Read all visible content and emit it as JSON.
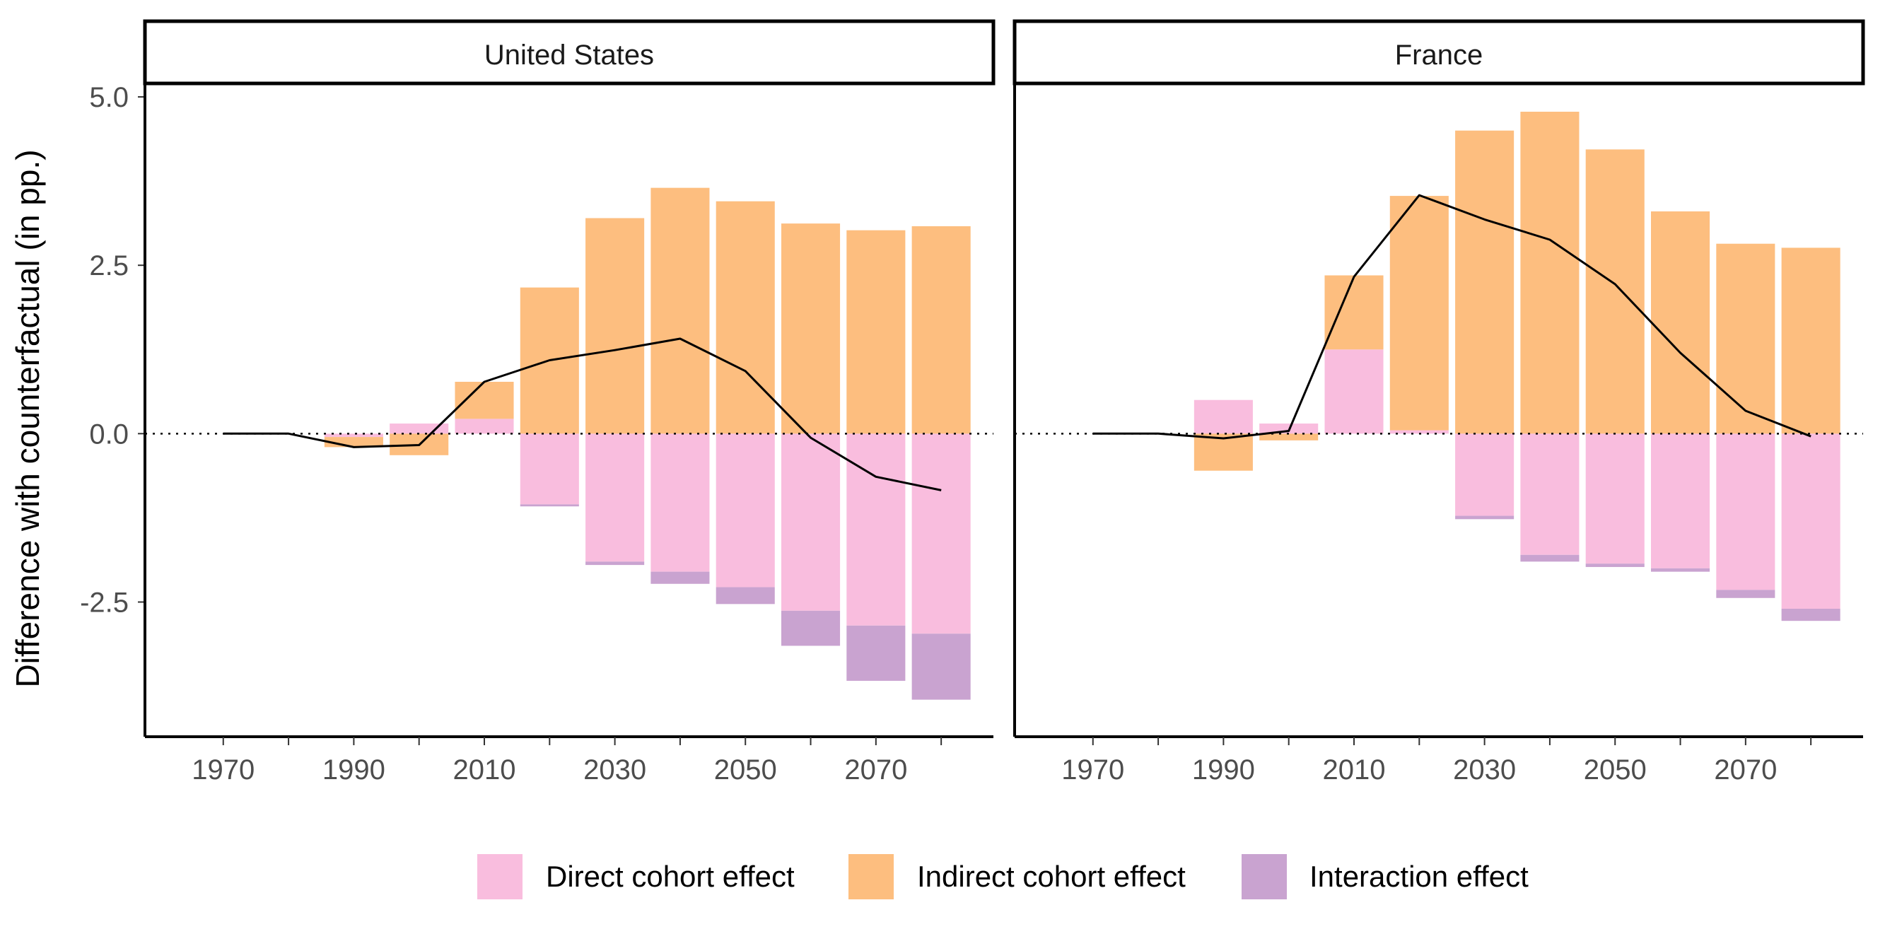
{
  "chart_data": {
    "type": "bar",
    "ylabel": "Difference with counterfactual (in pp.)",
    "ylim": [
      -4.5,
      5.2
    ],
    "y_ticks": [
      5.0,
      2.5,
      0.0,
      -2.5
    ],
    "y_tick_labels": [
      "5.0",
      "2.5",
      "0.0",
      "-2.5"
    ],
    "xlim": [
      1958,
      2088
    ],
    "x_ticks": [
      1970,
      1990,
      2010,
      2030,
      2050,
      2070
    ],
    "x_tick_labels": [
      "1970",
      "1990",
      "2010",
      "2030",
      "2050",
      "2070"
    ],
    "x_minor_ticks": [
      1980,
      2000,
      2020,
      2040,
      2060,
      2080
    ],
    "bar_width_years": 9,
    "grid": false,
    "zero_reference_line": "dotted",
    "legend_position": "bottom",
    "colors": {
      "direct": "#F9BDDE",
      "indirect": "#FDBE7F",
      "interaction": "#C9A3D0",
      "line": "#000000",
      "frame": "#000000"
    },
    "legend": [
      {
        "key": "direct",
        "label": "Direct cohort effect"
      },
      {
        "key": "indirect",
        "label": "Indirect cohort effect"
      },
      {
        "key": "interaction",
        "label": "Interaction effect"
      }
    ],
    "panels": [
      {
        "title": "United States",
        "bars": [
          {
            "x": 1990,
            "direct": -0.05,
            "indirect": -0.15,
            "interaction": 0.0
          },
          {
            "x": 2000,
            "direct": 0.15,
            "indirect": -0.32,
            "interaction": 0.0
          },
          {
            "x": 2010,
            "direct": 0.22,
            "indirect": 0.55,
            "interaction": 0.0
          },
          {
            "x": 2020,
            "direct": -1.05,
            "indirect": 2.17,
            "interaction": -0.03
          },
          {
            "x": 2030,
            "direct": -1.9,
            "indirect": 3.2,
            "interaction": -0.05
          },
          {
            "x": 2040,
            "direct": -2.05,
            "indirect": 3.65,
            "interaction": -0.18
          },
          {
            "x": 2050,
            "direct": -2.28,
            "indirect": 3.45,
            "interaction": -0.25
          },
          {
            "x": 2060,
            "direct": -2.63,
            "indirect": 3.12,
            "interaction": -0.52
          },
          {
            "x": 2070,
            "direct": -2.85,
            "indirect": 3.02,
            "interaction": -0.82
          },
          {
            "x": 2080,
            "direct": -2.97,
            "indirect": 3.08,
            "interaction": -0.98
          }
        ],
        "line": [
          {
            "x": 1970,
            "y": 0.0
          },
          {
            "x": 1980,
            "y": 0.0
          },
          {
            "x": 1990,
            "y": -0.2
          },
          {
            "x": 2000,
            "y": -0.17
          },
          {
            "x": 2010,
            "y": 0.77
          },
          {
            "x": 2020,
            "y": 1.09
          },
          {
            "x": 2030,
            "y": 1.24
          },
          {
            "x": 2040,
            "y": 1.41
          },
          {
            "x": 2050,
            "y": 0.93
          },
          {
            "x": 2060,
            "y": -0.06
          },
          {
            "x": 2070,
            "y": -0.64
          },
          {
            "x": 2080,
            "y": -0.84
          }
        ]
      },
      {
        "title": "France",
        "bars": [
          {
            "x": 1990,
            "direct": 0.5,
            "indirect": -0.55,
            "interaction": 0.0
          },
          {
            "x": 2000,
            "direct": 0.15,
            "indirect": -0.1,
            "interaction": 0.0
          },
          {
            "x": 2010,
            "direct": 1.25,
            "indirect": 1.1,
            "interaction": 0.0
          },
          {
            "x": 2020,
            "direct": 0.05,
            "indirect": 3.48,
            "interaction": 0.0
          },
          {
            "x": 2030,
            "direct": -1.22,
            "indirect": 4.5,
            "interaction": -0.05
          },
          {
            "x": 2040,
            "direct": -1.8,
            "indirect": 4.78,
            "interaction": -0.1
          },
          {
            "x": 2050,
            "direct": -1.93,
            "indirect": 4.22,
            "interaction": -0.05
          },
          {
            "x": 2060,
            "direct": -2.0,
            "indirect": 3.3,
            "interaction": -0.05
          },
          {
            "x": 2070,
            "direct": -2.32,
            "indirect": 2.82,
            "interaction": -0.12
          },
          {
            "x": 2080,
            "direct": -2.6,
            "indirect": 2.76,
            "interaction": -0.18
          }
        ],
        "line": [
          {
            "x": 1970,
            "y": 0.0
          },
          {
            "x": 1980,
            "y": 0.0
          },
          {
            "x": 1990,
            "y": -0.07
          },
          {
            "x": 2000,
            "y": 0.04
          },
          {
            "x": 2010,
            "y": 2.33
          },
          {
            "x": 2020,
            "y": 3.54
          },
          {
            "x": 2030,
            "y": 3.18
          },
          {
            "x": 2040,
            "y": 2.88
          },
          {
            "x": 2050,
            "y": 2.22
          },
          {
            "x": 2060,
            "y": 1.2
          },
          {
            "x": 2070,
            "y": 0.34
          },
          {
            "x": 2080,
            "y": -0.04
          }
        ]
      }
    ]
  }
}
